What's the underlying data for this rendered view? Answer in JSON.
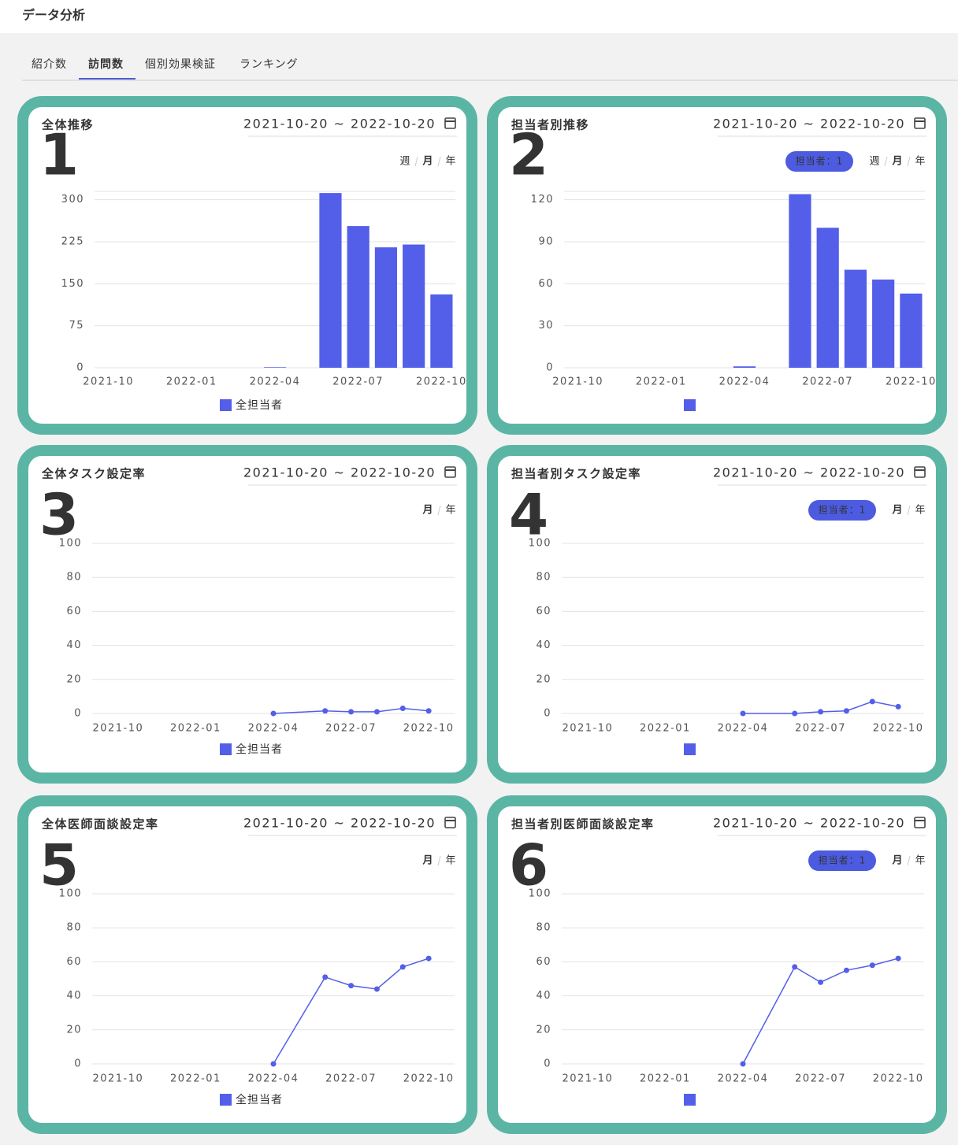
{
  "header": {
    "title": "データ分析"
  },
  "tabs": [
    "紹介数",
    "訪問数",
    "個別効果検証",
    "ランキング"
  ],
  "active_tab": 1,
  "panels": [
    {
      "number": "1",
      "date_range": "2021-10-20 ~ 2022-10-20",
      "periods": [
        "週",
        "月",
        "年"
      ],
      "active_period": 1
    },
    {
      "number": "2",
      "date_range": "2021-10-20 ~ 2022-10-20",
      "periods": [
        "週",
        "月",
        "年"
      ],
      "active_period": 1,
      "badge": "担当者：1"
    },
    {
      "number": "3",
      "date_range": "2021-10-20 ~ 2022-10-20",
      "periods": [
        "月",
        "年"
      ],
      "active_period": 0
    },
    {
      "number": "4",
      "date_range": "2021-10-20 ~ 2022-10-20",
      "periods": [
        "月",
        "年"
      ],
      "active_period": 0,
      "badge": "担当者：1"
    },
    {
      "number": "5",
      "date_range": "2021-10-20 ~ 2022-10-20",
      "periods": [
        "月",
        "年"
      ],
      "active_period": 0
    },
    {
      "number": "6",
      "date_range": "2021-10-20 ~ 2022-10-20",
      "periods": [
        "月",
        "年"
      ],
      "active_period": 0,
      "badge": "担当者：1"
    }
  ],
  "chart_data": [
    {
      "type": "bar",
      "title": "全体推移",
      "categories": [
        "2021-10",
        null,
        null,
        "2022-01",
        null,
        null,
        "2022-04",
        null,
        null,
        "2022-07",
        null,
        null,
        "2022-10"
      ],
      "series": [
        {
          "name": "全担当者",
          "color": "#535ee9",
          "values": [
            0,
            0,
            0,
            0,
            0,
            0,
            1,
            0,
            312,
            253,
            215,
            220,
            131
          ]
        }
      ],
      "ylim": [
        0,
        315
      ],
      "yticks": [
        0,
        75,
        150,
        225,
        300
      ],
      "grid": true
    },
    {
      "type": "bar",
      "title": "担当者別推移",
      "categories": [
        "2021-10",
        null,
        null,
        "2022-01",
        null,
        null,
        "2022-04",
        null,
        null,
        "2022-07",
        null,
        null,
        "2022-10"
      ],
      "series": [
        {
          "color": "#535ee9",
          "values": [
            0,
            0,
            0,
            0,
            0,
            0,
            1,
            0,
            124,
            100,
            70,
            63,
            53
          ]
        }
      ],
      "ylim": [
        0,
        126
      ],
      "yticks": [
        0,
        30,
        60,
        90,
        120
      ],
      "grid": true
    },
    {
      "type": "line",
      "title": "全体タスク設定率",
      "x": [
        "2022-04",
        "2022-06",
        "2022-07",
        "2022-08",
        "2022-09",
        "2022-10"
      ],
      "xlim": [
        "2021-09",
        "2022-11"
      ],
      "xticks": [
        "2021-10",
        "2022-01",
        "2022-04",
        "2022-07",
        "2022-10"
      ],
      "series": [
        {
          "name": "全担当者",
          "color": "#535ee9",
          "values": [
            0,
            1.5,
            1,
            1,
            3,
            1.5
          ]
        }
      ],
      "ylim": [
        0,
        100
      ],
      "yticks": [
        0,
        20,
        40,
        60,
        80,
        100
      ],
      "grid": true
    },
    {
      "type": "line",
      "title": "担当者別タスク設定率",
      "x": [
        "2022-04",
        "2022-06",
        "2022-07",
        "2022-08",
        "2022-09",
        "2022-10"
      ],
      "xlim": [
        "2021-09",
        "2022-11"
      ],
      "xticks": [
        "2021-10",
        "2022-01",
        "2022-04",
        "2022-07",
        "2022-10"
      ],
      "series": [
        {
          "color": "#535ee9",
          "values": [
            0,
            0,
            1,
            1.5,
            7,
            4
          ]
        }
      ],
      "ylim": [
        0,
        100
      ],
      "yticks": [
        0,
        20,
        40,
        60,
        80,
        100
      ],
      "grid": true
    },
    {
      "type": "line",
      "title": "全体医師面談設定率",
      "x": [
        "2022-04",
        "2022-06",
        "2022-07",
        "2022-08",
        "2022-09",
        "2022-10"
      ],
      "xlim": [
        "2021-09",
        "2022-11"
      ],
      "xticks": [
        "2021-10",
        "2022-01",
        "2022-04",
        "2022-07",
        "2022-10"
      ],
      "series": [
        {
          "name": "全担当者",
          "color": "#535ee9",
          "values": [
            0,
            51,
            46,
            44,
            57,
            62
          ]
        }
      ],
      "ylim": [
        0,
        100
      ],
      "yticks": [
        0,
        20,
        40,
        60,
        80,
        100
      ],
      "grid": true
    },
    {
      "type": "line",
      "title": "担当者別医師面談設定率",
      "x": [
        "2022-04",
        "2022-06",
        "2022-07",
        "2022-08",
        "2022-09",
        "2022-10"
      ],
      "xlim": [
        "2021-09",
        "2022-11"
      ],
      "xticks": [
        "2021-10",
        "2022-01",
        "2022-04",
        "2022-07",
        "2022-10"
      ],
      "series": [
        {
          "color": "#535ee9",
          "values": [
            0,
            57,
            48,
            55,
            58,
            62
          ]
        }
      ],
      "ylim": [
        0,
        100
      ],
      "yticks": [
        0,
        20,
        40,
        60,
        80,
        100
      ],
      "grid": true
    }
  ]
}
